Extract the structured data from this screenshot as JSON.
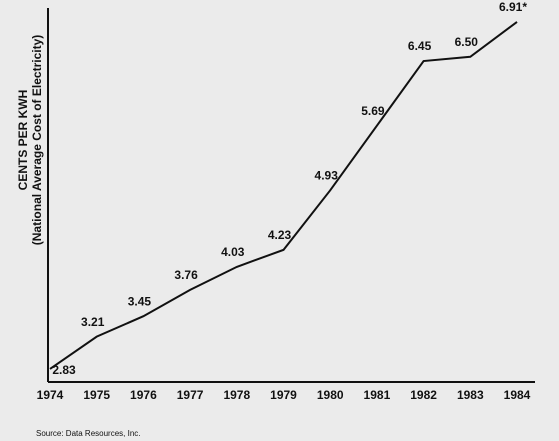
{
  "chart_data": {
    "type": "line",
    "y_label_line1": "CENTS PER KWH",
    "y_label_line2": "(National Average Cost of Electricity)",
    "categories": [
      "1974",
      "1975",
      "1976",
      "1977",
      "1978",
      "1979",
      "1980",
      "1981",
      "1982",
      "1983",
      "1984"
    ],
    "values": [
      2.83,
      3.21,
      3.45,
      3.76,
      4.03,
      4.23,
      4.93,
      5.69,
      6.45,
      6.5,
      6.91
    ],
    "value_labels": [
      "2.83",
      "3.21",
      "3.45",
      "3.76",
      "4.03",
      "4.23",
      "4.93",
      "5.69",
      "6.45",
      "6.50",
      "6.91*"
    ],
    "color": "#111111",
    "ylim": [
      2.7,
      7.05
    ],
    "source": "Source: Data Resources, Inc."
  }
}
